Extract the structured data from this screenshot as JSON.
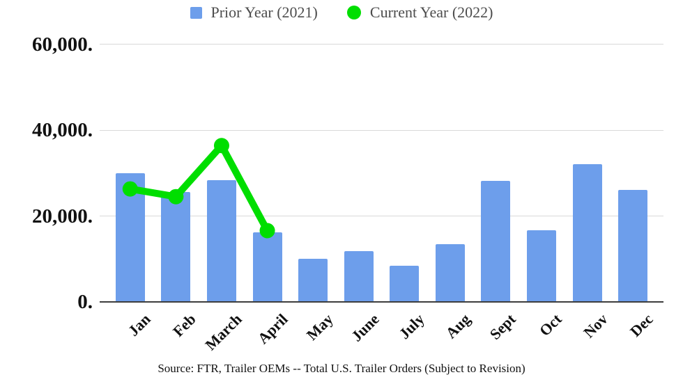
{
  "legend": {
    "items": [
      {
        "label": "Prior Year (2021)",
        "marker": "square-icon",
        "color": "#6d9eeb"
      },
      {
        "label": "Current Year (2022)",
        "marker": "circle-icon",
        "color": "#00de00"
      }
    ]
  },
  "source_note": "Source: FTR, Trailer OEMs -- Total U.S. Trailer Orders (Subject to Revision)",
  "colors": {
    "bar": "#6d9eeb",
    "line": "#00de00",
    "gridline": "#d9d9d9",
    "baseline": "#3d3d3d",
    "axis_text": "#111111",
    "legend_text": "#4d4d4d"
  },
  "chart_data": {
    "type": "bar",
    "subtype": "bar-line-combo",
    "title": "",
    "xlabel": "",
    "ylabel": "",
    "categories": [
      "Jan",
      "Feb",
      "March",
      "April",
      "May",
      "June",
      "July",
      "Aug",
      "Sept",
      "Oct",
      "Nov",
      "Dec"
    ],
    "series": [
      {
        "name": "Prior Year (2021)",
        "type": "bar",
        "color": "#6d9eeb",
        "values": [
          30000,
          25600,
          28300,
          16200,
          10000,
          11900,
          8500,
          13500,
          28100,
          16600,
          32100,
          26000
        ]
      },
      {
        "name": "Current Year (2022)",
        "type": "line",
        "color": "#00de00",
        "values": [
          26300,
          24500,
          36400,
          16600,
          null,
          null,
          null,
          null,
          null,
          null,
          null,
          null
        ]
      }
    ],
    "ylim": [
      0,
      64000
    ],
    "yticks": [
      {
        "value": 0,
        "label": "0."
      },
      {
        "value": 20000,
        "label": "20,000."
      },
      {
        "value": 40000,
        "label": "40,000."
      },
      {
        "value": 60000,
        "label": "60,000."
      }
    ],
    "grid": "horizontal",
    "legend_position": "top-center"
  }
}
